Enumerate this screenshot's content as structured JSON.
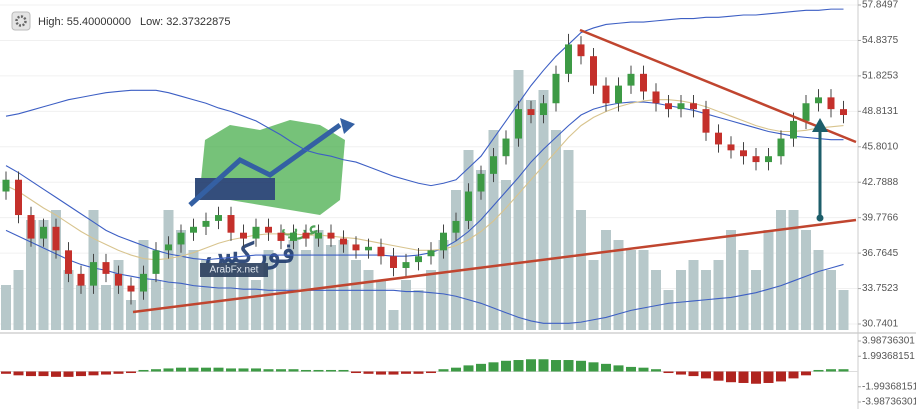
{
  "header": {
    "high": "High: 55.40000000",
    "low": "Low: 32.37322875"
  },
  "watermark": {
    "title": "فوركس",
    "subtitle": "عرب",
    "site": "ArabFx.net"
  },
  "chart_data": [
    {
      "type": "candlestick",
      "open": [
        42.0,
        43.0,
        40.0,
        38.0,
        39.0,
        37.0,
        35.0,
        34.0,
        36.0,
        35.0,
        34.0,
        33.5,
        35.0,
        37.0,
        37.5,
        38.5,
        39.0,
        39.5,
        40.0,
        38.5,
        38.0,
        39.0,
        38.5,
        37.8,
        38.5,
        38.0,
        38.5,
        38.0,
        37.5,
        37.0,
        37.3,
        36.5,
        35.5,
        36.0,
        36.5,
        37.0,
        38.5,
        39.5,
        42.0,
        43.5,
        45.0,
        46.5,
        49.0,
        48.5,
        49.5,
        52.0,
        54.5,
        53.5,
        51.0,
        49.5,
        51.0,
        52.0,
        50.5,
        49.5,
        49.0,
        49.5,
        49.0,
        47.0,
        46.0,
        45.5,
        45.0,
        44.5,
        45.0,
        46.5,
        48.0,
        49.5,
        50.0,
        49.0
      ],
      "high": [
        43.7,
        43.7,
        40.7,
        39.7,
        39.7,
        37.7,
        35.7,
        36.7,
        36.7,
        35.7,
        34.7,
        35.7,
        37.7,
        38.2,
        39.2,
        39.7,
        40.2,
        40.7,
        40.7,
        39.2,
        39.7,
        39.7,
        39.2,
        39.2,
        39.2,
        39.2,
        39.2,
        38.7,
        38.2,
        38.0,
        38.0,
        37.2,
        36.7,
        37.2,
        37.7,
        39.2,
        40.2,
        42.7,
        44.2,
        45.7,
        47.2,
        49.7,
        49.7,
        50.2,
        52.7,
        55.4,
        55.2,
        54.2,
        51.7,
        51.7,
        52.7,
        52.7,
        51.2,
        50.2,
        50.2,
        50.2,
        49.7,
        47.7,
        46.7,
        46.2,
        45.7,
        45.7,
        47.2,
        48.7,
        50.2,
        50.7,
        50.7,
        49.7
      ],
      "low": [
        41.3,
        39.3,
        37.3,
        37.3,
        36.3,
        34.3,
        33.3,
        33.3,
        34.3,
        33.3,
        32.4,
        32.8,
        34.3,
        36.3,
        36.8,
        37.8,
        38.3,
        38.8,
        37.8,
        37.3,
        37.3,
        37.8,
        37.1,
        37.1,
        37.3,
        37.3,
        37.3,
        36.8,
        36.3,
        36.3,
        35.8,
        34.8,
        34.8,
        35.3,
        35.8,
        36.3,
        37.8,
        38.8,
        41.3,
        42.8,
        44.3,
        45.8,
        47.8,
        47.8,
        48.8,
        51.3,
        52.8,
        50.3,
        48.8,
        48.8,
        50.3,
        49.8,
        48.8,
        48.3,
        48.3,
        48.3,
        46.3,
        45.3,
        44.8,
        44.3,
        43.8,
        43.8,
        44.3,
        45.8,
        47.3,
        48.8,
        48.3,
        47.8
      ],
      "close": [
        43.0,
        40.0,
        38.0,
        39.0,
        37.0,
        35.0,
        34.0,
        36.0,
        35.0,
        34.0,
        33.5,
        35.0,
        37.0,
        37.5,
        38.5,
        39.0,
        39.5,
        40.0,
        38.5,
        38.0,
        39.0,
        38.5,
        37.8,
        38.5,
        38.0,
        38.5,
        38.0,
        37.5,
        37.0,
        37.3,
        36.5,
        35.5,
        36.0,
        36.5,
        37.0,
        38.5,
        39.5,
        42.0,
        43.5,
        45.0,
        46.5,
        49.0,
        48.5,
        49.5,
        52.0,
        54.5,
        53.5,
        51.0,
        49.5,
        51.0,
        52.0,
        50.5,
        49.5,
        49.0,
        49.5,
        49.0,
        47.0,
        46.0,
        45.5,
        45.0,
        44.5,
        45.0,
        46.5,
        48.0,
        49.5,
        50.0,
        49.0,
        48.5
      ],
      "up_color": "#3d9a45",
      "down_color": "#c4302b",
      "volume": {
        "color": "#b7c8ca",
        "values": [
          45,
          60,
          110,
          110,
          120,
          60,
          45,
          120,
          45,
          70,
          30,
          90,
          50,
          120,
          100,
          80,
          70,
          60,
          70,
          60,
          50,
          80,
          70,
          90,
          80,
          100,
          85,
          90,
          70,
          60,
          50,
          20,
          50,
          40,
          60,
          90,
          140,
          180,
          160,
          200,
          150,
          260,
          230,
          240,
          200,
          180,
          120,
          70,
          100,
          90,
          80,
          80,
          60,
          40,
          60,
          70,
          60,
          70,
          100,
          80,
          60,
          100,
          120,
          120,
          100,
          80,
          60,
          40
        ]
      },
      "series": [
        {
          "color": "#3d5fc4",
          "values": [
            48.4,
            48.6,
            48.9,
            49.2,
            49.5,
            49.8,
            50.0,
            50.2,
            50.4,
            50.5,
            50.6,
            50.6,
            50.6,
            50.4,
            50.1,
            49.8,
            49.5,
            49.1,
            48.8,
            48.4,
            48.0,
            47.4,
            46.8,
            46.1,
            45.5,
            45.2,
            45.0,
            44.7,
            44.5,
            44.1,
            43.7,
            43.3,
            43.0,
            42.7,
            42.5,
            42.7,
            43.0,
            44.0,
            45.0,
            46.5,
            48.0,
            49.5,
            51.0,
            52.3,
            53.5,
            54.5,
            55.5,
            55.9,
            56.2,
            56.3,
            56.4,
            56.4,
            56.5,
            56.6,
            56.7,
            56.7,
            56.8,
            56.8,
            56.9,
            57.0,
            57.0,
            57.1,
            57.2,
            57.3,
            57.4,
            57.4,
            57.5,
            57.5
          ]
        },
        {
          "color": "#3d5fc4",
          "values": [
            44.2,
            43.6,
            42.9,
            42.2,
            41.5,
            40.8,
            40.1,
            39.4,
            38.7,
            38.2,
            37.8,
            37.4,
            37.0,
            36.7,
            36.5,
            36.3,
            36.2,
            36.3,
            36.4,
            36.5,
            36.6,
            36.6,
            36.6,
            36.6,
            36.6,
            36.6,
            36.6,
            36.6,
            36.6,
            36.6,
            36.6,
            36.5,
            36.5,
            36.6,
            36.8,
            37.2,
            37.8,
            38.6,
            39.6,
            40.8,
            42.0,
            43.2,
            44.5,
            45.6,
            46.6,
            47.6,
            48.5,
            49.0,
            49.3,
            49.5,
            49.6,
            49.6,
            49.5,
            49.3,
            49.1,
            48.9,
            48.6,
            48.3,
            48.0,
            47.7,
            47.4,
            47.1,
            46.9,
            46.7,
            46.6,
            46.5,
            46.4,
            46.4
          ]
        },
        {
          "color": "#3d5fc4",
          "values": [
            38.7,
            38.2,
            37.7,
            37.2,
            36.7,
            36.2,
            35.8,
            35.5,
            35.3,
            35.0,
            34.8,
            34.6,
            34.5,
            34.3,
            34.2,
            34.0,
            33.9,
            33.8,
            33.8,
            33.7,
            33.7,
            33.6,
            33.6,
            33.6,
            33.6,
            33.6,
            33.6,
            33.6,
            33.6,
            33.6,
            33.6,
            33.6,
            33.5,
            33.5,
            33.4,
            33.3,
            33.1,
            32.8,
            32.5,
            32.1,
            31.7,
            31.3,
            31.0,
            30.8,
            30.8,
            30.8,
            30.9,
            31.1,
            31.3,
            31.6,
            31.9,
            32.1,
            32.3,
            32.5,
            32.6,
            32.7,
            32.8,
            32.9,
            33.0,
            33.2,
            33.4,
            33.7,
            34.0,
            34.4,
            34.8,
            35.2,
            35.5,
            35.8
          ]
        },
        {
          "color": "#d8c48e",
          "values": [
            42.5,
            42.0,
            41.3,
            40.6,
            40.0,
            39.3,
            38.6,
            38.0,
            37.5,
            37.0,
            36.6,
            36.3,
            36.2,
            36.3,
            36.5,
            36.8,
            37.2,
            37.6,
            37.9,
            38.1,
            38.3,
            38.4,
            38.4,
            38.4,
            38.3,
            38.3,
            38.2,
            38.1,
            38.0,
            37.8,
            37.6,
            37.4,
            37.2,
            37.0,
            37.0,
            37.1,
            37.4,
            37.9,
            38.6,
            39.5,
            40.6,
            41.8,
            43.0,
            44.2,
            45.4,
            46.6,
            47.6,
            48.3,
            48.8,
            49.2,
            49.5,
            49.7,
            49.8,
            49.8,
            49.7,
            49.5,
            49.2,
            48.8,
            48.4,
            48.0,
            47.6,
            47.3,
            47.1,
            47.1,
            47.2,
            47.4,
            47.5,
            47.6
          ]
        }
      ],
      "ylim": [
        30.7401,
        57.8497
      ],
      "yticks": [
        57.8497,
        54.8375,
        51.8253,
        48.8131,
        {
          "value": 45.801,
          "label": "45.8010"
        },
        42.7888,
        39.7766,
        36.7645,
        33.7523,
        30.7401
      ],
      "grid": true
    },
    {
      "type": "bar",
      "values": [
        -0.3,
        -0.5,
        -0.6,
        -0.6,
        -0.7,
        -0.7,
        -0.6,
        -0.5,
        -0.4,
        -0.3,
        -0.2,
        0.2,
        0.3,
        0.4,
        0.5,
        0.5,
        0.5,
        0.5,
        0.4,
        0.4,
        0.4,
        0.3,
        0.3,
        0.3,
        0.2,
        0.2,
        0.2,
        0.2,
        -0.2,
        -0.3,
        -0.4,
        -0.4,
        -0.3,
        -0.3,
        -0.2,
        0.3,
        0.5,
        0.8,
        1.0,
        1.2,
        1.4,
        1.5,
        1.6,
        1.6,
        1.5,
        1.5,
        1.4,
        1.2,
        1.0,
        0.8,
        0.6,
        0.5,
        0.3,
        -0.2,
        -0.4,
        -0.6,
        -0.9,
        -1.2,
        -1.4,
        -1.5,
        -1.6,
        -1.5,
        -1.3,
        -0.9,
        -0.5,
        0.2,
        0.3,
        0.3
      ],
      "up_color": "#3d9a45",
      "down_color": "#b0241f",
      "ylim": [
        -3.98736301,
        3.98736301
      ],
      "yticks": [
        3.98736301,
        1.99368151,
        -1.99368151,
        -3.98736301
      ],
      "grid": false
    }
  ]
}
